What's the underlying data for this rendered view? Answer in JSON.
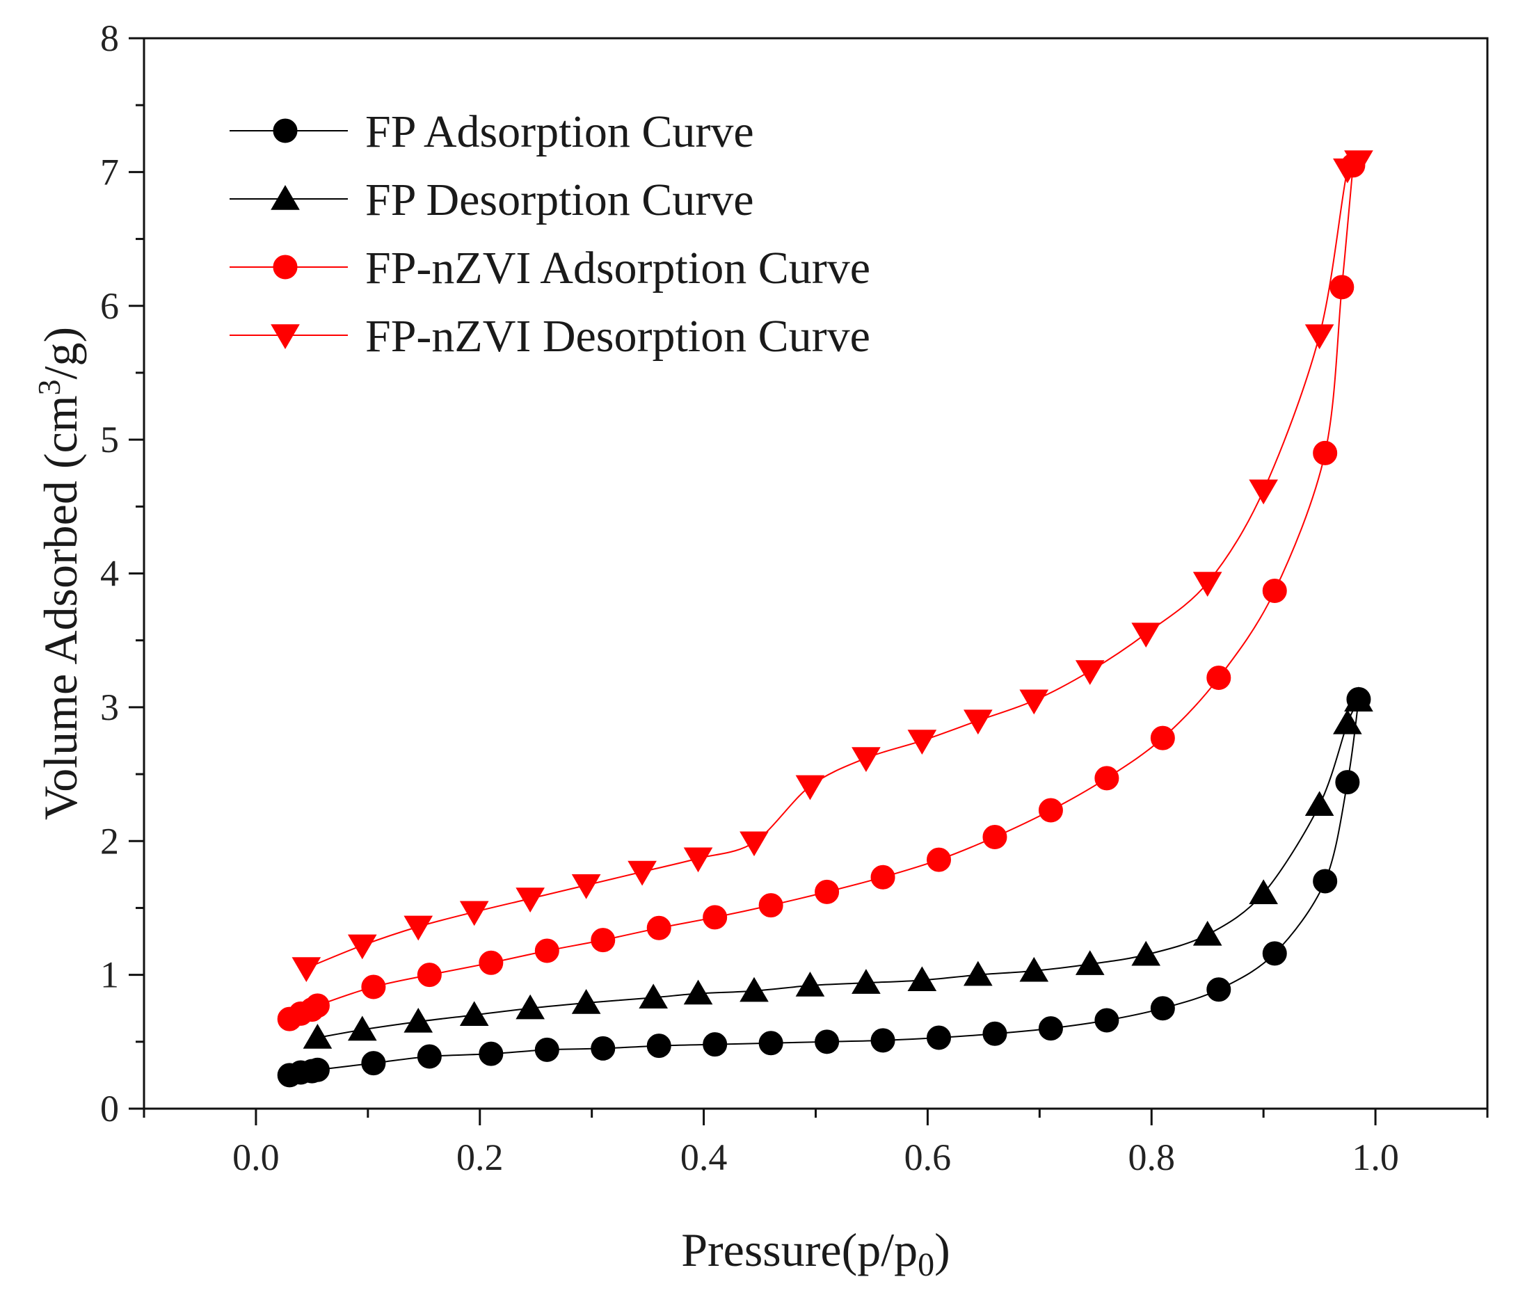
{
  "chart_data": {
    "type": "line",
    "title": "",
    "xlabel": "Pressure(p/p0)",
    "xlabel_main": "Pressure(p/p",
    "xlabel_sub": "0",
    "xlabel_tail": ")",
    "ylabel": "Volume Adsorbed (cm3/g)",
    "ylabel_main": "Volume Adsorbed (cm",
    "ylabel_sup": "3",
    "ylabel_tail": "/g)",
    "xlim": [
      -0.1,
      1.1
    ],
    "ylim": [
      0,
      8
    ],
    "xticks": [
      "0.0",
      "0.2",
      "0.4",
      "0.6",
      "0.8",
      "1.0"
    ],
    "xtick_values": [
      0.0,
      0.2,
      0.4,
      0.6,
      0.8,
      1.0
    ],
    "yticks": [
      "0",
      "1",
      "2",
      "3",
      "4",
      "5",
      "6",
      "7",
      "8"
    ],
    "ytick_values": [
      0,
      1,
      2,
      3,
      4,
      5,
      6,
      7,
      8
    ],
    "legend_position": "top-left",
    "series": [
      {
        "name": "FP Adsorption Curve",
        "color": "#000000",
        "marker": "circle",
        "x": [
          0.03,
          0.04,
          0.05,
          0.055,
          0.105,
          0.155,
          0.21,
          0.26,
          0.31,
          0.36,
          0.41,
          0.46,
          0.51,
          0.56,
          0.61,
          0.66,
          0.71,
          0.76,
          0.81,
          0.86,
          0.91,
          0.955,
          0.975,
          0.985
        ],
        "y": [
          0.25,
          0.27,
          0.28,
          0.29,
          0.34,
          0.39,
          0.41,
          0.44,
          0.45,
          0.47,
          0.48,
          0.49,
          0.5,
          0.51,
          0.53,
          0.56,
          0.6,
          0.66,
          0.75,
          0.89,
          1.16,
          1.7,
          2.44,
          3.06
        ]
      },
      {
        "name": "FP Desorption Curve",
        "color": "#000000",
        "marker": "triangle-up",
        "x": [
          0.055,
          0.095,
          0.145,
          0.195,
          0.245,
          0.295,
          0.355,
          0.395,
          0.445,
          0.495,
          0.545,
          0.595,
          0.645,
          0.695,
          0.745,
          0.795,
          0.85,
          0.9,
          0.95,
          0.975,
          0.985
        ],
        "y": [
          0.53,
          0.59,
          0.65,
          0.7,
          0.75,
          0.79,
          0.83,
          0.86,
          0.88,
          0.92,
          0.94,
          0.96,
          1.0,
          1.03,
          1.08,
          1.15,
          1.3,
          1.61,
          2.27,
          2.88,
          3.05
        ]
      },
      {
        "name": "FP-nZVI Adsorption Curve",
        "color": "#ff0000",
        "marker": "circle",
        "x": [
          0.03,
          0.04,
          0.05,
          0.055,
          0.105,
          0.155,
          0.21,
          0.26,
          0.31,
          0.36,
          0.41,
          0.46,
          0.51,
          0.56,
          0.61,
          0.66,
          0.71,
          0.76,
          0.81,
          0.86,
          0.91,
          0.955,
          0.97,
          0.98
        ],
        "y": [
          0.67,
          0.71,
          0.74,
          0.77,
          0.91,
          1.0,
          1.09,
          1.18,
          1.26,
          1.35,
          1.43,
          1.52,
          1.62,
          1.73,
          1.86,
          2.03,
          2.23,
          2.47,
          2.77,
          3.22,
          3.87,
          4.9,
          6.14,
          7.05
        ]
      },
      {
        "name": "FP-nZVI Desorption Curve",
        "color": "#ff0000",
        "marker": "triangle-down",
        "x": [
          0.045,
          0.095,
          0.145,
          0.195,
          0.245,
          0.295,
          0.345,
          0.395,
          0.445,
          0.495,
          0.545,
          0.595,
          0.645,
          0.695,
          0.745,
          0.795,
          0.85,
          0.9,
          0.95,
          0.975,
          0.985
        ],
        "y": [
          1.05,
          1.22,
          1.36,
          1.47,
          1.57,
          1.67,
          1.77,
          1.87,
          1.99,
          2.41,
          2.62,
          2.75,
          2.9,
          3.05,
          3.27,
          3.55,
          3.93,
          4.62,
          5.78,
          7.02,
          7.08
        ]
      }
    ]
  }
}
